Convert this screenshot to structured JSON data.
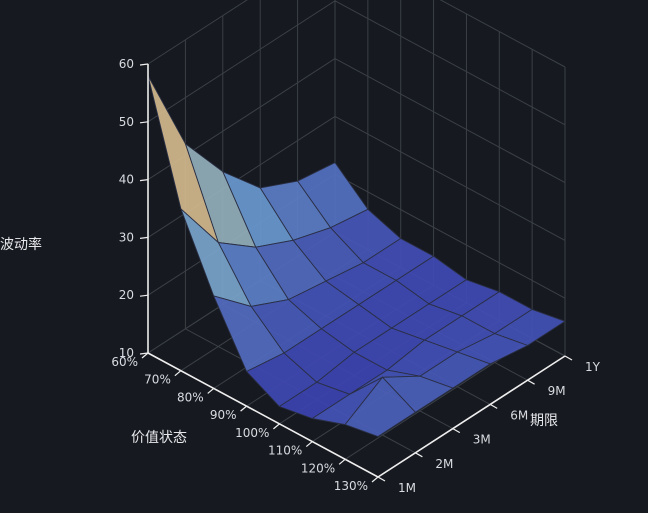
{
  "chart_data": {
    "type": "surface3d",
    "title": "",
    "xlabel": "价值状态",
    "ylabel": "期限",
    "zlabel": "波动率",
    "x_categories": [
      "60%",
      "70%",
      "80%",
      "90%",
      "100%",
      "110%",
      "120%",
      "130%"
    ],
    "y_categories": [
      "1M",
      "2M",
      "3M",
      "6M",
      "9M",
      "1Y"
    ],
    "zlim": [
      10,
      60
    ],
    "z_ticks": [
      "10",
      "20",
      "30",
      "40",
      "50",
      "60"
    ],
    "grid": true,
    "values": [
      [
        58,
        42,
        33,
        26,
        23,
        22
      ],
      [
        38,
        28,
        23,
        20,
        18,
        17
      ],
      [
        26,
        20,
        17,
        16,
        15,
        15
      ],
      [
        16,
        15,
        15,
        15,
        15,
        15
      ],
      [
        13,
        13,
        14,
        14,
        14,
        14
      ],
      [
        14,
        14,
        14,
        15,
        15,
        15
      ],
      [
        16,
        20,
        16,
        16,
        15,
        15
      ],
      [
        17,
        17,
        17,
        17,
        16,
        16
      ]
    ],
    "colors": {
      "background": "#16191f",
      "grid": "#3b4047",
      "axis": "#eeeeee",
      "low": "#3a3fb0",
      "mid": "#6d9fd2",
      "high_mid": "#d6c995",
      "high": "#a50c3a"
    }
  }
}
